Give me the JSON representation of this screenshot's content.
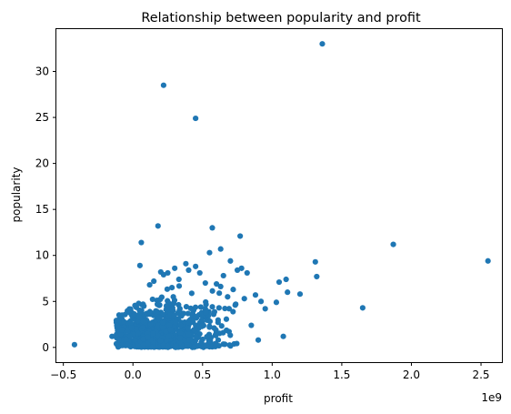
{
  "chart_data": {
    "type": "scatter",
    "title": "Relationship between popularity and profit",
    "xlabel": "profit",
    "ylabel": "popularity",
    "x_offset_label": "1e9",
    "x_unit_multiplier": 1000000000,
    "xlim": [
      -0.55,
      2.65
    ],
    "ylim": [
      -1.6,
      34.6
    ],
    "x_ticks": [
      -0.5,
      0.0,
      0.5,
      1.0,
      1.5,
      2.0,
      2.5
    ],
    "x_tick_labels": [
      "−0.5",
      "0.0",
      "0.5",
      "1.0",
      "1.5",
      "2.0",
      "2.5"
    ],
    "y_ticks": [
      0,
      5,
      10,
      15,
      20,
      25,
      30
    ],
    "y_tick_labels": [
      "0",
      "5",
      "10",
      "15",
      "20",
      "25",
      "30"
    ],
    "grid": false,
    "legend": "none",
    "marker_color": "#1f77b4",
    "series": [
      {
        "x": [
          1.36,
          0.22,
          0.45,
          2.55,
          1.87,
          1.65,
          1.31,
          1.32,
          1.1,
          1.05,
          1.03,
          1.11,
          1.2,
          0.92,
          1.08,
          0.57,
          0.63,
          0.55,
          0.18,
          0.06,
          0.77,
          0.7,
          0.78,
          0.82,
          0.65,
          0.75,
          0.38,
          0.45,
          0.4,
          0.48,
          0.3,
          0.25,
          0.2,
          0.22,
          0.05,
          0.15,
          0.52,
          0.88,
          0.8,
          0.95,
          0.85,
          0.9,
          0.72,
          0.68,
          0.6,
          0.62,
          0.58,
          0.55,
          -0.42,
          -0.15,
          -0.1,
          -0.05,
          0.33,
          0.28,
          0.12
        ],
        "y": [
          33.0,
          28.5,
          24.9,
          9.4,
          11.2,
          4.3,
          9.3,
          7.7,
          7.4,
          7.1,
          4.9,
          6.0,
          5.8,
          5.0,
          1.2,
          13.0,
          10.7,
          10.3,
          13.2,
          11.4,
          12.1,
          9.4,
          8.6,
          8.1,
          7.8,
          8.4,
          9.1,
          8.8,
          8.4,
          8.1,
          8.6,
          8.1,
          8.2,
          7.9,
          8.9,
          7.2,
          7.0,
          5.7,
          5.3,
          4.2,
          2.4,
          0.8,
          6.3,
          5.5,
          6.9,
          5.9,
          3.6,
          2.2,
          0.3,
          1.2,
          0.8,
          0.9,
          7.4,
          6.5,
          6.8
        ]
      }
    ],
    "dense_cluster": {
      "x_center": 0.22,
      "x_spread": 0.22,
      "y_center": 2.0,
      "y_spread": 1.6,
      "count": 1500
    }
  }
}
